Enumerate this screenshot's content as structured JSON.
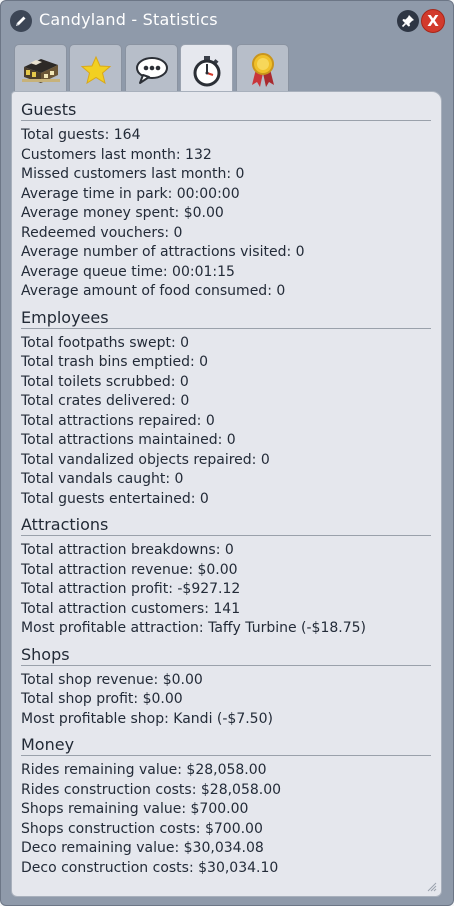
{
  "window": {
    "title": "Candyland - Statistics",
    "close_label": "X"
  },
  "tabs": [
    {
      "name": "park-tab",
      "icon": "park-entrance-icon"
    },
    {
      "name": "rating-tab",
      "icon": "star-icon"
    },
    {
      "name": "thoughts-tab",
      "icon": "speech-bubble-icon"
    },
    {
      "name": "statistics-tab",
      "icon": "stopwatch-icon",
      "active": true
    },
    {
      "name": "awards-tab",
      "icon": "medal-icon"
    }
  ],
  "sections": [
    {
      "title": "Guests",
      "lines": [
        "Total guests: 164",
        "Customers last month: 132",
        "Missed customers last month: 0",
        "Average time in park: 00:00:00",
        "Average money spent: $0.00",
        "Redeemed vouchers: 0",
        "Average number of attractions visited: 0",
        "Average queue time: 00:01:15",
        "Average amount of food consumed: 0"
      ]
    },
    {
      "title": "Employees",
      "lines": [
        "Total footpaths swept: 0",
        "Total trash bins emptied: 0",
        "Total toilets scrubbed: 0",
        "Total crates delivered: 0",
        "Total attractions repaired: 0",
        "Total attractions maintained: 0",
        "Total vandalized objects repaired: 0",
        "Total vandals caught: 0",
        "Total guests entertained: 0"
      ]
    },
    {
      "title": "Attractions",
      "lines": [
        "Total attraction breakdowns: 0",
        "Total attraction revenue: $0.00",
        "Total attraction profit: -$927.12",
        "Total attraction customers: 141",
        "Most profitable attraction: Taffy Turbine (-$18.75)"
      ]
    },
    {
      "title": "Shops",
      "lines": [
        "Total shop revenue: $0.00",
        "Total shop profit: $0.00",
        "Most profitable shop: Kandi (-$7.50)"
      ]
    },
    {
      "title": "Money",
      "lines": [
        "Rides remaining value: $28,058.00",
        "Rides construction costs: $28,058.00",
        "Shops remaining value: $700.00",
        "Shops construction costs: $700.00",
        "Deco remaining value: $30,034.08",
        "Deco construction costs: $30,034.10"
      ]
    }
  ]
}
